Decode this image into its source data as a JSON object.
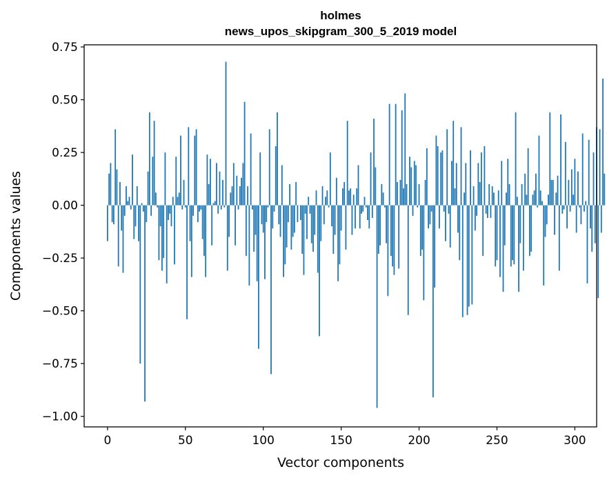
{
  "chart_data": {
    "type": "bar",
    "title_lines": [
      "holmes",
      "news_upos_skipgram_300_5_2019 model"
    ],
    "xlabel": "Vector components",
    "ylabel": "Components values",
    "xlim": [
      -15,
      314
    ],
    "ylim": [
      -1.05,
      0.76
    ],
    "x_ticks": [
      0,
      50,
      100,
      150,
      200,
      250,
      300
    ],
    "y_ticks": [
      0.75,
      0.5,
      0.25,
      0.0,
      -0.25,
      -0.5,
      -0.75,
      -1.0
    ],
    "y_tick_labels": [
      "0.75",
      "0.50",
      "0.25",
      "0.00",
      "−0.25",
      "−0.50",
      "−0.75",
      "−1.00"
    ],
    "bar_color": "#1f77b4",
    "grid": false,
    "values": [
      -0.17,
      0.15,
      0.2,
      -0.08,
      -0.09,
      0.36,
      0.17,
      -0.29,
      0.11,
      -0.12,
      -0.32,
      -0.05,
      0.09,
      0.02,
      0.04,
      -0.02,
      0.24,
      -0.16,
      -0.1,
      0.09,
      -0.17,
      -0.75,
      0.01,
      -0.03,
      -0.93,
      -0.08,
      0.16,
      0.44,
      -0.05,
      0.23,
      0.4,
      0.06,
      -0.01,
      -0.26,
      -0.1,
      -0.31,
      -0.25,
      0.25,
      -0.37,
      -0.07,
      -0.04,
      -0.1,
      0.04,
      -0.28,
      0.23,
      0.04,
      0.06,
      0.33,
      -0.02,
      0.12,
      -0.01,
      -0.54,
      0.37,
      -0.17,
      -0.34,
      -0.05,
      0.33,
      0.36,
      -0.08,
      -0.03,
      -0.02,
      -0.16,
      -0.24,
      -0.34,
      0.24,
      0.1,
      0.22,
      -0.19,
      0.01,
      0.02,
      0.2,
      -0.04,
      0.16,
      -0.02,
      0.12,
      -0.01,
      0.68,
      -0.31,
      -0.15,
      0.06,
      0.09,
      0.2,
      -0.19,
      0.14,
      -0.02,
      0.09,
      0.13,
      0.2,
      0.49,
      -0.24,
      0.09,
      -0.38,
      0.34,
      -0.02,
      -0.22,
      -0.14,
      -0.36,
      -0.68,
      0.25,
      -0.09,
      -0.13,
      -0.35,
      -0.08,
      -0.01,
      0.36,
      -0.8,
      -0.11,
      -0.03,
      0.28,
      0.44,
      -0.09,
      -0.15,
      0.19,
      -0.34,
      -0.28,
      -0.2,
      -0.08,
      0.1,
      -0.21,
      -0.15,
      -0.13,
      0.11,
      -0.08,
      0.0,
      -0.07,
      -0.23,
      -0.33,
      -0.04,
      -0.16,
      0.04,
      -0.04,
      -0.18,
      -0.22,
      -0.14,
      0.07,
      -0.32,
      -0.62,
      -0.17,
      0.09,
      -0.09,
      0.04,
      0.07,
      -0.01,
      0.25,
      -0.1,
      -0.23,
      -0.14,
      0.13,
      -0.36,
      -0.28,
      -0.12,
      0.08,
      0.11,
      -0.21,
      0.4,
      0.07,
      0.08,
      -0.14,
      0.05,
      -0.11,
      0.08,
      0.19,
      -0.11,
      -0.04,
      -0.03,
      0.04,
      -0.01,
      -0.07,
      -0.11,
      0.25,
      -0.06,
      0.41,
      0.18,
      -0.96,
      -0.23,
      -0.19,
      0.1,
      0.06,
      -0.01,
      -0.18,
      -0.43,
      0.48,
      -0.24,
      -0.29,
      -0.33,
      0.48,
      0.11,
      -0.3,
      0.12,
      0.45,
      0.08,
      0.53,
      0.1,
      -0.52,
      0.23,
      0.18,
      -0.05,
      0.21,
      0.19,
      -0.01,
      0.1,
      -0.24,
      -0.21,
      -0.45,
      0.12,
      0.27,
      -0.11,
      -0.09,
      -0.03,
      -0.91,
      -0.39,
      0.33,
      0.28,
      -0.11,
      0.25,
      0.26,
      -0.03,
      -0.17,
      0.36,
      -0.04,
      -0.2,
      0.21,
      0.4,
      0.08,
      0.2,
      -0.13,
      -0.26,
      0.37,
      -0.53,
      0.06,
      0.2,
      -0.52,
      -0.48,
      0.26,
      -0.47,
      0.09,
      -0.12,
      -0.05,
      0.2,
      0.11,
      0.25,
      -0.24,
      0.28,
      -0.04,
      -0.06,
      0.1,
      -0.06,
      0.09,
      0.06,
      -0.29,
      -0.26,
      0.07,
      -0.34,
      0.21,
      -0.41,
      -0.19,
      0.06,
      0.22,
      0.1,
      -0.29,
      -0.26,
      -0.28,
      0.44,
      0.04,
      -0.41,
      -0.18,
      0.1,
      -0.31,
      0.15,
      0.05,
      0.27,
      -0.24,
      -0.22,
      0.05,
      0.07,
      0.15,
      -0.01,
      0.33,
      0.07,
      0.02,
      -0.38,
      -0.15,
      -0.09,
      0.05,
      0.44,
      0.12,
      0.12,
      -0.14,
      0.06,
      0.14,
      -0.31,
      0.43,
      -0.04,
      -0.02,
      0.3,
      -0.11,
      0.12,
      -0.03,
      0.17,
      0.05,
      0.22,
      -0.13,
      0.16,
      -0.01,
      -0.09,
      0.34,
      -0.03,
      0.02,
      -0.37,
      0.31,
      -0.11,
      -0.22,
      0.25,
      -0.18,
      0.37,
      -0.44,
      0.36,
      -0.13,
      0.6,
      0.15
    ]
  }
}
